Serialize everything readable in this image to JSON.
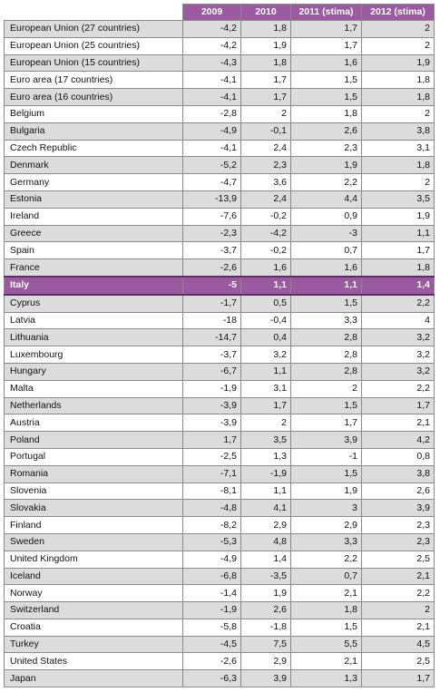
{
  "header": {
    "country": "",
    "y2009": "2009",
    "y2010": "2010",
    "y2011": "2011 (stima)",
    "y2012": "2012 (stima)"
  },
  "highlight_color": "#9b5aa0",
  "rows": [
    {
      "country": "European Union (27 countries)",
      "y2009": "-4,2",
      "y2010": "1,8",
      "y2011": "1,7",
      "y2012": "2"
    },
    {
      "country": "European Union (25 countries)",
      "y2009": "-4,2",
      "y2010": "1,9",
      "y2011": "1,7",
      "y2012": "2"
    },
    {
      "country": "European Union (15 countries)",
      "y2009": "-4,3",
      "y2010": "1,8",
      "y2011": "1,6",
      "y2012": "1,9"
    },
    {
      "country": "Euro area (17 countries)",
      "y2009": "-4,1",
      "y2010": "1,7",
      "y2011": "1,5",
      "y2012": "1,8"
    },
    {
      "country": "Euro area (16 countries)",
      "y2009": "-4,1",
      "y2010": "1,7",
      "y2011": "1,5",
      "y2012": "1,8"
    },
    {
      "country": "Belgium",
      "y2009": "-2,8",
      "y2010": "2",
      "y2011": "1,8",
      "y2012": "2"
    },
    {
      "country": "Bulgaria",
      "y2009": "-4,9",
      "y2010": "-0,1",
      "y2011": "2,6",
      "y2012": "3,8"
    },
    {
      "country": "Czech Republic",
      "y2009": "-4,1",
      "y2010": "2,4",
      "y2011": "2,3",
      "y2012": "3,1"
    },
    {
      "country": "Denmark",
      "y2009": "-5,2",
      "y2010": "2,3",
      "y2011": "1,9",
      "y2012": "1,8"
    },
    {
      "country": "Germany",
      "y2009": "-4,7",
      "y2010": "3,6",
      "y2011": "2,2",
      "y2012": "2"
    },
    {
      "country": "Estonia",
      "y2009": "-13,9",
      "y2010": "2,4",
      "y2011": "4,4",
      "y2012": "3,5"
    },
    {
      "country": "Ireland",
      "y2009": "-7,6",
      "y2010": "-0,2",
      "y2011": "0,9",
      "y2012": "1,9"
    },
    {
      "country": "Greece",
      "y2009": "-2,3",
      "y2010": "-4,2",
      "y2011": "-3",
      "y2012": "1,1"
    },
    {
      "country": "Spain",
      "y2009": "-3,7",
      "y2010": "-0,2",
      "y2011": "0,7",
      "y2012": "1,7"
    },
    {
      "country": "France",
      "y2009": "-2,6",
      "y2010": "1,6",
      "y2011": "1,6",
      "y2012": "1,8"
    },
    {
      "country": "Italy",
      "y2009": "-5",
      "y2010": "1,1",
      "y2011": "1,1",
      "y2012": "1,4",
      "highlight": true
    },
    {
      "country": "Cyprus",
      "y2009": "-1,7",
      "y2010": "0,5",
      "y2011": "1,5",
      "y2012": "2,2"
    },
    {
      "country": "Latvia",
      "y2009": "-18",
      "y2010": "-0,4",
      "y2011": "3,3",
      "y2012": "4"
    },
    {
      "country": "Lithuania",
      "y2009": "-14,7",
      "y2010": "0,4",
      "y2011": "2,8",
      "y2012": "3,2"
    },
    {
      "country": "Luxembourg",
      "y2009": "-3,7",
      "y2010": "3,2",
      "y2011": "2,8",
      "y2012": "3,2"
    },
    {
      "country": "Hungary",
      "y2009": "-6,7",
      "y2010": "1,1",
      "y2011": "2,8",
      "y2012": "3,2"
    },
    {
      "country": "Malta",
      "y2009": "-1,9",
      "y2010": "3,1",
      "y2011": "2",
      "y2012": "2,2"
    },
    {
      "country": "Netherlands",
      "y2009": "-3,9",
      "y2010": "1,7",
      "y2011": "1,5",
      "y2012": "1,7"
    },
    {
      "country": "Austria",
      "y2009": "-3,9",
      "y2010": "2",
      "y2011": "1,7",
      "y2012": "2,1"
    },
    {
      "country": "Poland",
      "y2009": "1,7",
      "y2010": "3,5",
      "y2011": "3,9",
      "y2012": "4,2"
    },
    {
      "country": "Portugal",
      "y2009": "-2,5",
      "y2010": "1,3",
      "y2011": "-1",
      "y2012": "0,8"
    },
    {
      "country": "Romania",
      "y2009": "-7,1",
      "y2010": "-1,9",
      "y2011": "1,5",
      "y2012": "3,8"
    },
    {
      "country": "Slovenia",
      "y2009": "-8,1",
      "y2010": "1,1",
      "y2011": "1,9",
      "y2012": "2,6"
    },
    {
      "country": "Slovakia",
      "y2009": "-4,8",
      "y2010": "4,1",
      "y2011": "3",
      "y2012": "3,9"
    },
    {
      "country": "Finland",
      "y2009": "-8,2",
      "y2010": "2,9",
      "y2011": "2,9",
      "y2012": "2,3"
    },
    {
      "country": "Sweden",
      "y2009": "-5,3",
      "y2010": "4,8",
      "y2011": "3,3",
      "y2012": "2,3"
    },
    {
      "country": "United Kingdom",
      "y2009": "-4,9",
      "y2010": "1,4",
      "y2011": "2,2",
      "y2012": "2,5"
    },
    {
      "country": "Iceland",
      "y2009": "-6,8",
      "y2010": "-3,5",
      "y2011": "0,7",
      "y2012": "2,1"
    },
    {
      "country": "Norway",
      "y2009": "-1,4",
      "y2010": "1,9",
      "y2011": "2,1",
      "y2012": "2,2"
    },
    {
      "country": "Switzerland",
      "y2009": "-1,9",
      "y2010": "2,6",
      "y2011": "1,8",
      "y2012": "2"
    },
    {
      "country": "Croatia",
      "y2009": "-5,8",
      "y2010": "-1,8",
      "y2011": "1,5",
      "y2012": "2,1"
    },
    {
      "country": "Turkey",
      "y2009": "-4,5",
      "y2010": "7,5",
      "y2011": "5,5",
      "y2012": "4,5"
    },
    {
      "country": "United States",
      "y2009": "-2,6",
      "y2010": "2,9",
      "y2011": "2,1",
      "y2012": "2,5"
    },
    {
      "country": "Japan",
      "y2009": "-6,3",
      "y2010": "3,9",
      "y2011": "1,3",
      "y2012": "1,7"
    }
  ]
}
